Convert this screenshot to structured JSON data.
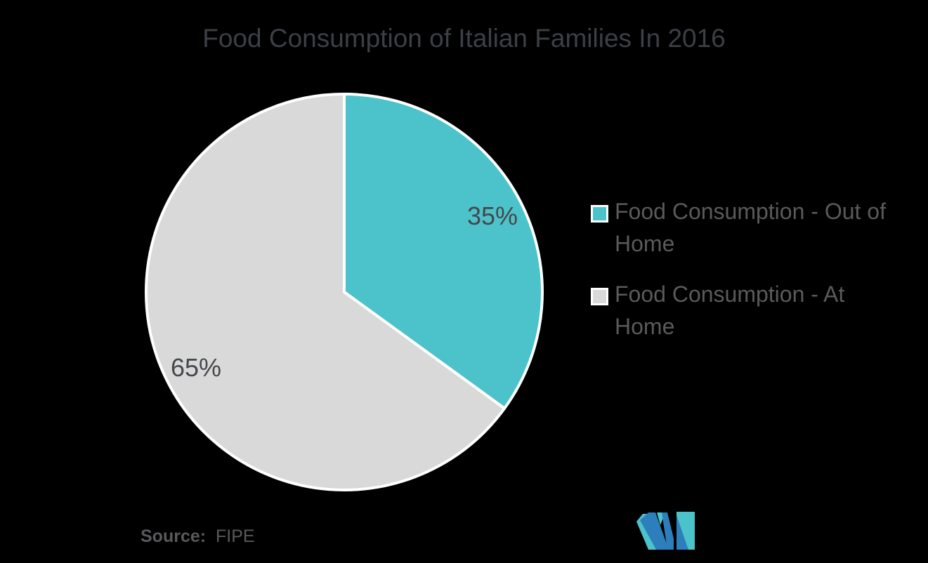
{
  "title": "Food Consumption of Italian Families In 2016",
  "source": {
    "prefix": "Source:",
    "name": "FIPE"
  },
  "legend": {
    "position": "right",
    "items": [
      {
        "label": "Food Consumption - Out of Home",
        "color": "#4cc3ca"
      },
      {
        "label": "Food Consumption - At Home",
        "color": "#d9d9d9"
      }
    ]
  },
  "chart_data": {
    "type": "pie",
    "title": "Food Consumption of Italian Families In 2016",
    "categories": [
      "Food Consumption - Out of Home",
      "Food Consumption - At Home"
    ],
    "values": [
      35,
      65
    ],
    "unit": "percent",
    "data_labels": [
      "35%",
      "65%"
    ],
    "colors": [
      "#4cc3ca",
      "#d9d9d9"
    ],
    "start_angle_deg": 0,
    "direction": "clockwise",
    "legend_position": "right",
    "source": "FIPE"
  },
  "logo": {
    "name": "mordor-intelligence-mark",
    "blue": "#2d7fbb",
    "teal": "#4cc3ca"
  },
  "colors": {
    "background": "#000000",
    "title": "#3c3f45",
    "legend_text": "#5a5a5a",
    "label_text": "#45484c",
    "source_text": "#58595b",
    "slice_stroke": "#ffffff"
  }
}
